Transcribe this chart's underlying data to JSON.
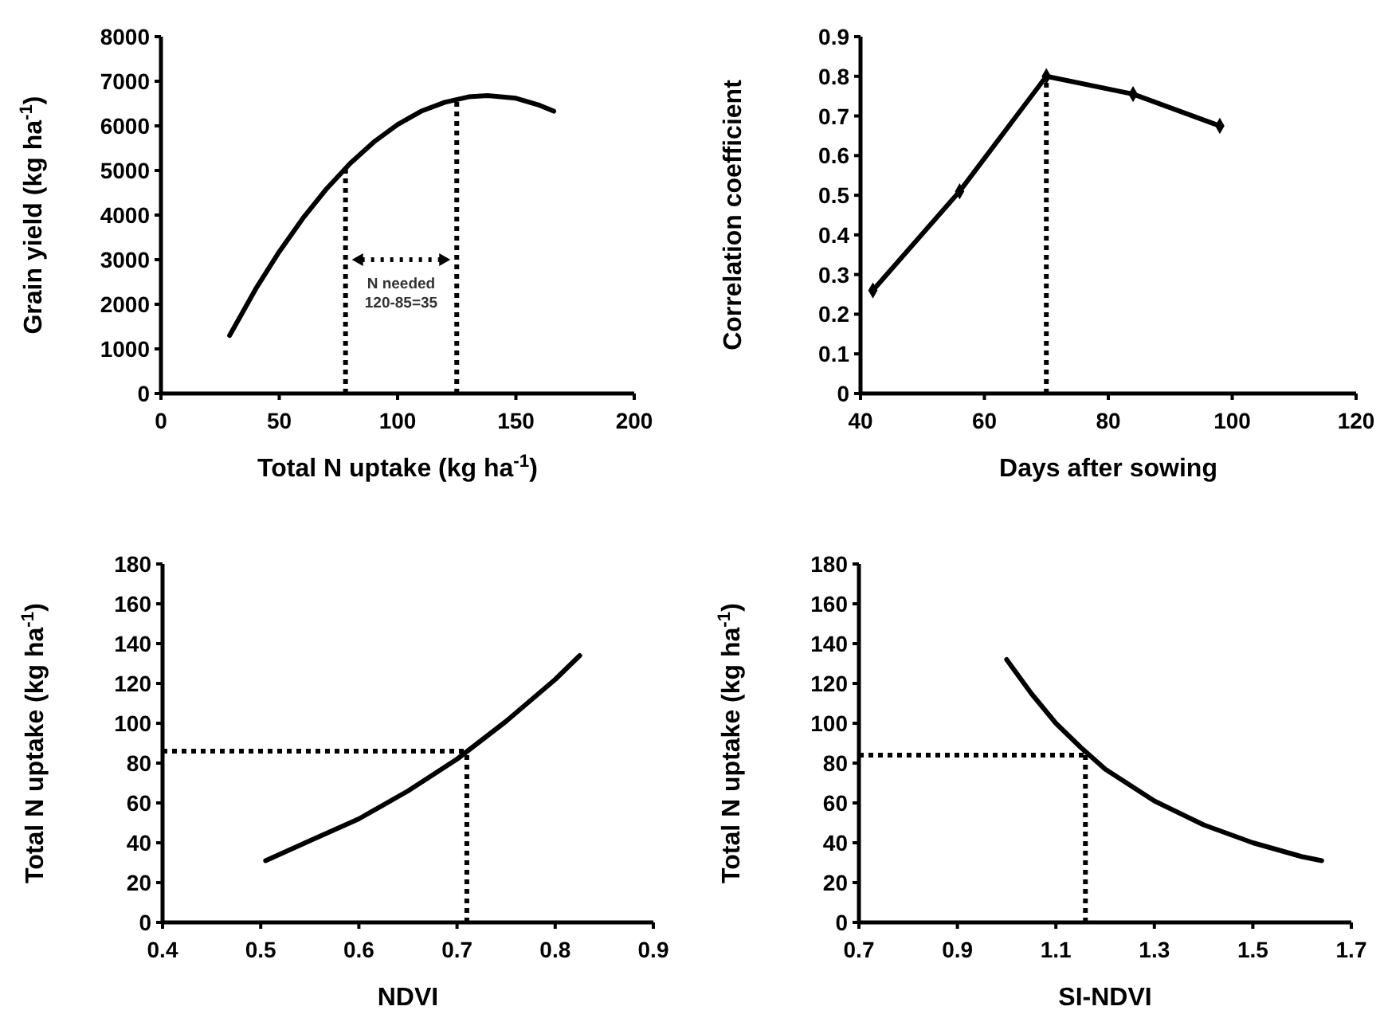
{
  "chart_data": [
    {
      "type": "line",
      "xlabel": "Total N uptake (kg ha$^{-1}$)",
      "ylabel": "Grain yield (kg ha$^{-1}$)",
      "xlim": [
        0,
        200
      ],
      "ylim": [
        0,
        8000
      ],
      "xticks": [
        0,
        50,
        100,
        150,
        200
      ],
      "yticks": [
        0,
        1000,
        2000,
        3000,
        4000,
        5000,
        6000,
        7000,
        8000
      ],
      "grid": false,
      "marker": "none",
      "line_style": "solid",
      "series": [
        {
          "color": "#000000",
          "x": [
            29,
            40,
            50,
            60,
            70,
            80,
            90,
            100,
            110,
            120,
            130,
            138,
            150,
            160,
            166
          ],
          "values": [
            1300,
            2340,
            3180,
            3930,
            4590,
            5160,
            5640,
            6030,
            6330,
            6530,
            6650,
            6680,
            6620,
            6460,
            6330
          ]
        }
      ],
      "ref_lines": [
        {
          "axis": "x",
          "value": 78,
          "line_style": "dotted",
          "color": "#000000"
        },
        {
          "axis": "x",
          "value": 125,
          "line_style": "dotted",
          "color": "#000000"
        }
      ],
      "annotations": [
        "N needed\n120-85=35"
      ]
    },
    {
      "type": "line",
      "xlabel": "Days after sowing",
      "ylabel": "Correlation coefficient",
      "xlim": [
        40,
        120
      ],
      "ylim": [
        0,
        0.9
      ],
      "xticks": [
        40,
        60,
        80,
        100,
        120
      ],
      "yticks": [
        0,
        0.1,
        0.2,
        0.3,
        0.4,
        0.5,
        0.6,
        0.7,
        0.8,
        0.9
      ],
      "grid": false,
      "marker": "diamond",
      "line_style": "solid",
      "series": [
        {
          "color": "#000000",
          "x": [
            42,
            56,
            70,
            84,
            98
          ],
          "values": [
            0.26,
            0.51,
            0.8,
            0.755,
            0.675
          ]
        }
      ],
      "ref_lines": [
        {
          "axis": "x",
          "value": 70,
          "line_style": "dotted",
          "color": "#000000"
        }
      ]
    },
    {
      "type": "line",
      "xlabel": "NDVI",
      "ylabel": "Total N uptake (kg ha$^{-1}$)",
      "xlim": [
        0.4,
        0.9
      ],
      "ylim": [
        0,
        180
      ],
      "xticks": [
        0.4,
        0.5,
        0.6,
        0.7,
        0.8,
        0.9
      ],
      "yticks": [
        0,
        20,
        40,
        60,
        80,
        100,
        120,
        140,
        160,
        180
      ],
      "grid": false,
      "marker": "none",
      "line_style": "solid",
      "series": [
        {
          "color": "#000000",
          "x": [
            0.505,
            0.55,
            0.6,
            0.65,
            0.7,
            0.75,
            0.8,
            0.825
          ],
          "values": [
            31,
            41,
            52,
            66,
            82,
            101,
            122,
            134
          ]
        }
      ],
      "ref_lines": [
        {
          "axis": "x",
          "value": 0.71,
          "line_style": "dotted",
          "color": "#000000"
        },
        {
          "axis": "y",
          "value": 86,
          "line_style": "dotted",
          "color": "#000000"
        }
      ]
    },
    {
      "type": "line",
      "xlabel": "SI-NDVI",
      "ylabel": "Total N uptake (kg ha$^{-1}$)",
      "xlim": [
        0.7,
        1.7
      ],
      "ylim": [
        0,
        180
      ],
      "xticks": [
        0.7,
        0.9,
        1.1,
        1.3,
        1.5,
        1.7
      ],
      "yticks": [
        0,
        20,
        40,
        60,
        80,
        100,
        120,
        140,
        160,
        180
      ],
      "grid": false,
      "marker": "none",
      "line_style": "solid",
      "series": [
        {
          "color": "#000000",
          "x": [
            1.0,
            1.05,
            1.1,
            1.15,
            1.2,
            1.3,
            1.4,
            1.5,
            1.6,
            1.64
          ],
          "values": [
            132,
            115,
            100,
            88,
            77,
            61,
            49,
            40,
            33,
            31
          ]
        }
      ],
      "ref_lines": [
        {
          "axis": "x",
          "value": 1.16,
          "line_style": "dotted",
          "color": "#000000"
        },
        {
          "axis": "y",
          "value": 84,
          "line_style": "dotted",
          "color": "#000000"
        }
      ]
    }
  ]
}
